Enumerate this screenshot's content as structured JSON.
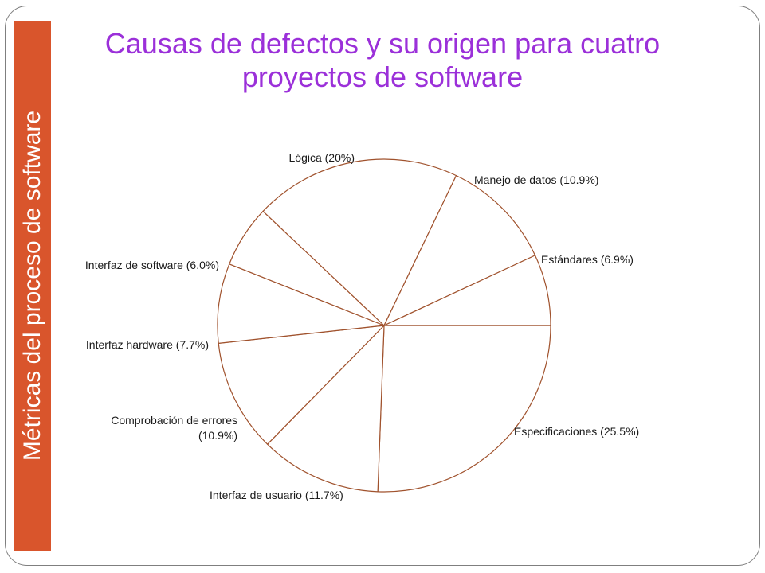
{
  "slide": {
    "side_title": "Métricas del proceso de software",
    "title": "Causas de defectos y su origen para cuatro proyectos de software",
    "accent_color": "#d9552c",
    "title_color": "#9b30d9"
  },
  "chart_data": {
    "type": "pie",
    "title": "Causas de defectos y su origen para cuatro proyectos de software",
    "unit": "%",
    "slices": [
      {
        "label": "Especificaciones (25.5%)",
        "value": 25.5
      },
      {
        "label": "Interfaz de usuario (11.7%)",
        "value": 11.7
      },
      {
        "label": "Comprobación de errores (10.9%)",
        "value": 10.9
      },
      {
        "label": "Interfaz hardware  (7.7%)",
        "value": 7.7
      },
      {
        "label": "Interfaz de software (6.0%)",
        "value": 6.0
      },
      {
        "label": "Lógica (20%)",
        "value": 20
      },
      {
        "label": "Manejo de datos  (10.9%)",
        "value": 10.9
      },
      {
        "label": "Estándares  (6.9%)",
        "value": 6.9
      }
    ],
    "line_color": "#a0522d",
    "fill_color": "#ffffff"
  }
}
